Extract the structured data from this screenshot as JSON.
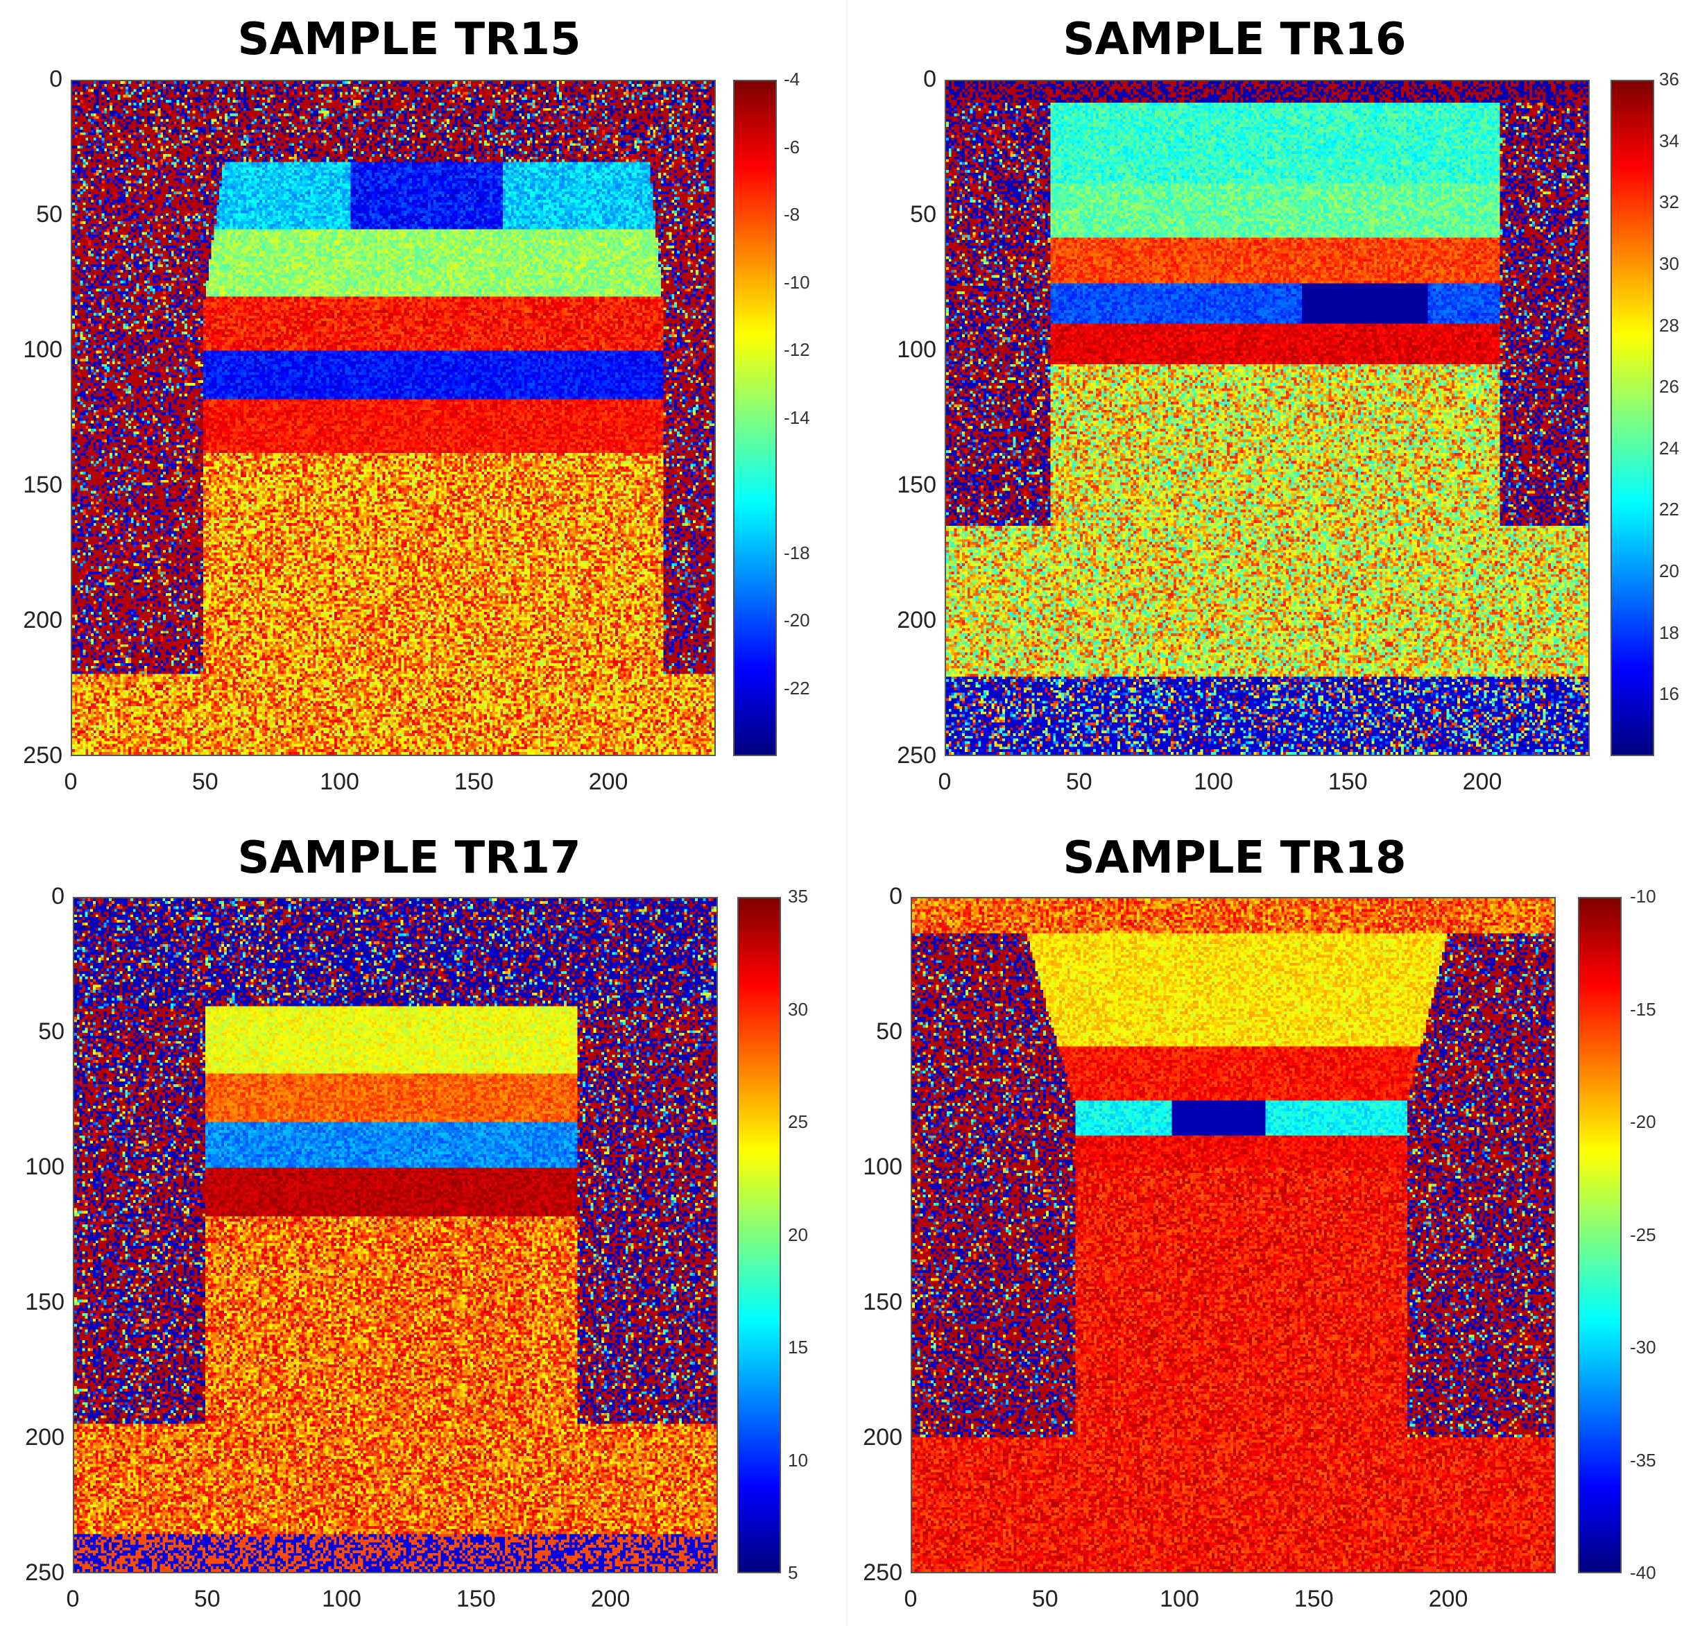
{
  "chart_data": [
    {
      "type": "heatmap",
      "title": "SAMPLE TR15",
      "xlim": [
        0,
        240
      ],
      "ylim": [
        250,
        0
      ],
      "x_ticks": [
        "0",
        "50",
        "100",
        "150",
        "200"
      ],
      "y_ticks": [
        "0",
        "50",
        "100",
        "150",
        "200",
        "250"
      ],
      "colorbar": {
        "min": -24,
        "max": -4,
        "ticks": [
          "-4",
          "-6",
          "-8",
          "-10",
          "-12",
          "-14",
          "-18",
          "-20",
          "-22"
        ]
      },
      "colormap": "jet"
    },
    {
      "type": "heatmap",
      "title": "SAMPLE TR16",
      "xlim": [
        0,
        240
      ],
      "ylim": [
        250,
        0
      ],
      "x_ticks": [
        "0",
        "50",
        "100",
        "150",
        "200"
      ],
      "y_ticks": [
        "0",
        "50",
        "100",
        "150",
        "200",
        "250"
      ],
      "colorbar": {
        "min": 14,
        "max": 36,
        "ticks": [
          "36",
          "34",
          "32",
          "30",
          "28",
          "26",
          "24",
          "22",
          "20",
          "18",
          "16"
        ]
      },
      "colormap": "jet"
    },
    {
      "type": "heatmap",
      "title": "SAMPLE TR17",
      "xlim": [
        0,
        240
      ],
      "ylim": [
        250,
        0
      ],
      "x_ticks": [
        "0",
        "50",
        "100",
        "150",
        "200"
      ],
      "y_ticks": [
        "0",
        "50",
        "100",
        "150",
        "200",
        "250"
      ],
      "colorbar": {
        "min": 5,
        "max": 35,
        "ticks": [
          "35",
          "30",
          "25",
          "20",
          "15",
          "10",
          "5"
        ]
      },
      "colormap": "jet"
    },
    {
      "type": "heatmap",
      "title": "SAMPLE TR18",
      "xlim": [
        0,
        240
      ],
      "ylim": [
        250,
        0
      ],
      "x_ticks": [
        "0",
        "50",
        "100",
        "150",
        "200"
      ],
      "y_ticks": [
        "0",
        "50",
        "100",
        "150",
        "200",
        "250"
      ],
      "colorbar": {
        "min": -40,
        "max": -10,
        "ticks": [
          "-10",
          "-15",
          "-20",
          "-25",
          "-30",
          "-35",
          "-40"
        ]
      },
      "colormap": "jet"
    }
  ]
}
